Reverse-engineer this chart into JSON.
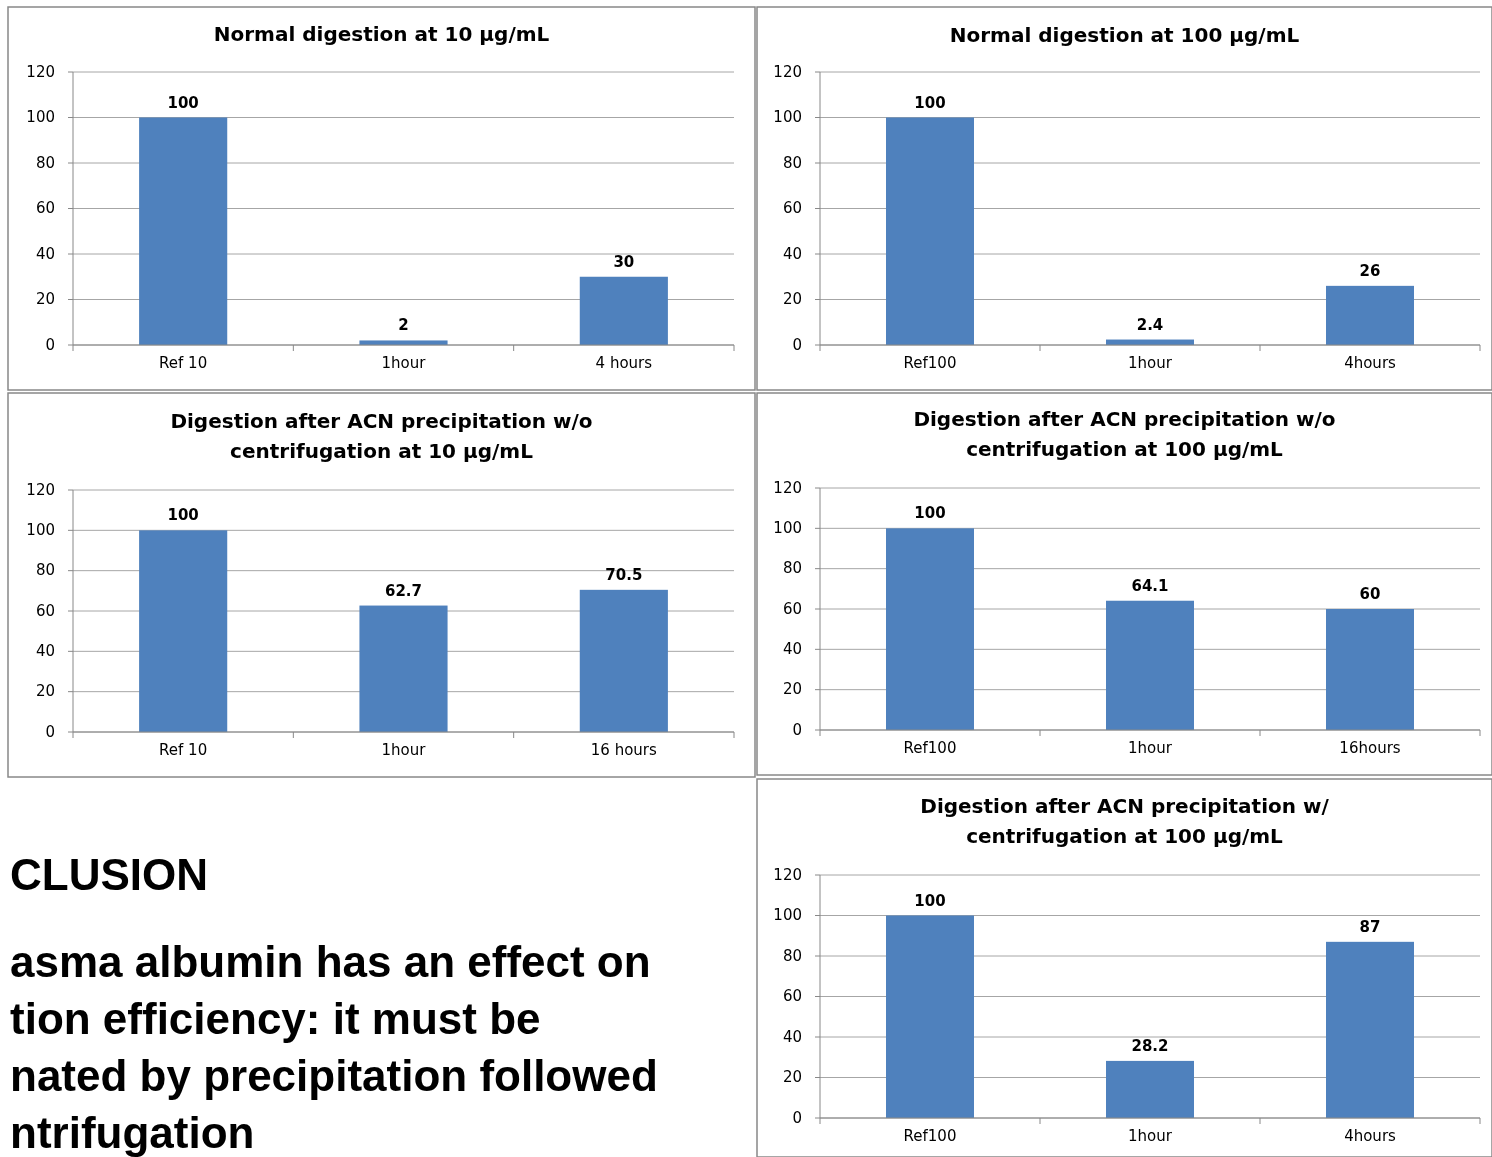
{
  "chart_data": [
    {
      "type": "bar",
      "title": "Normal digestion at 10 µg/mL",
      "categories": [
        "Ref 10",
        "1hour",
        "4 hours"
      ],
      "values": [
        100,
        2,
        30
      ],
      "color": "#4f81bd",
      "ylim": [
        0,
        120
      ],
      "yticks": [
        0,
        20,
        40,
        60,
        80,
        100,
        120
      ],
      "grid": "y",
      "data_labels": true
    },
    {
      "type": "bar",
      "title": "Normal digestion at 100 µg/mL",
      "categories": [
        "Ref100",
        "1hour",
        "4hours"
      ],
      "values": [
        100,
        2.4,
        26
      ],
      "color": "#4f81bd",
      "ylim": [
        0,
        120
      ],
      "yticks": [
        0,
        20,
        40,
        60,
        80,
        100,
        120
      ],
      "grid": "y",
      "data_labels": true
    },
    {
      "type": "bar",
      "title": "Digestion after ACN precipitation w/o centrifugation at 10 µg/mL",
      "categories": [
        "Ref 10",
        "1hour",
        "16 hours"
      ],
      "values": [
        100,
        62.7,
        70.5
      ],
      "color": "#4f81bd",
      "ylim": [
        0,
        120
      ],
      "yticks": [
        0,
        20,
        40,
        60,
        80,
        100,
        120
      ],
      "grid": "y",
      "data_labels": true
    },
    {
      "type": "bar",
      "title": "Digestion after ACN precipitation w/o centrifugation at 100 µg/mL",
      "categories": [
        "Ref100",
        "1hour",
        "16hours"
      ],
      "values": [
        100,
        64.1,
        60
      ],
      "color": "#4f81bd",
      "ylim": [
        0,
        120
      ],
      "yticks": [
        0,
        20,
        40,
        60,
        80,
        100,
        120
      ],
      "grid": "y",
      "data_labels": true
    },
    {
      "type": "other",
      "title": "CLUSION",
      "annotations": [
        "asma albumin has an effect on",
        "tion efficiency: it must be",
        "nated by precipitation followed",
        "ntrifugation"
      ]
    },
    {
      "type": "bar",
      "title": "Digestion after ACN precipitation w/ centrifugation at 100 µg/mL",
      "categories": [
        "Ref100",
        "1hour",
        "4hours"
      ],
      "values": [
        100,
        28.2,
        87
      ],
      "color": "#4f81bd",
      "ylim": [
        0,
        120
      ],
      "yticks": [
        0,
        20,
        40,
        60,
        80,
        100,
        120
      ],
      "grid": "y",
      "data_labels": true
    }
  ]
}
